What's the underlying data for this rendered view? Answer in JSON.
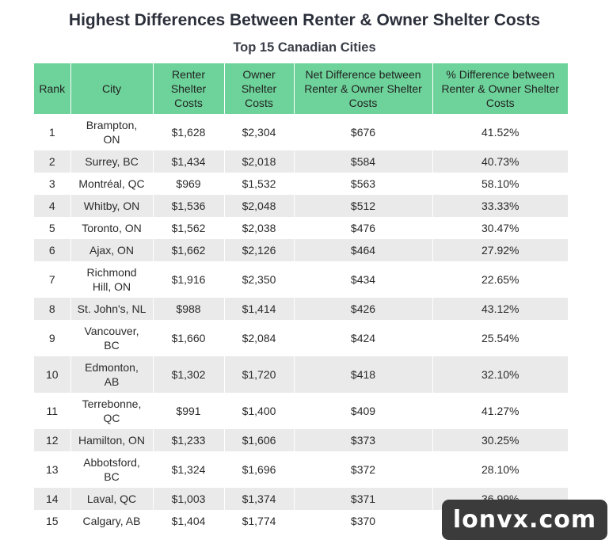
{
  "title": "Highest Differences Between Renter & Owner Shelter Costs",
  "subtitle": "Top 15 Canadian Cities",
  "watermark": "lonvx.com",
  "colors": {
    "header_bg": "#6dd39a",
    "stripe": "#eaeaea",
    "watermark_bg": "#3b3b3b"
  },
  "chart_data": {
    "type": "table",
    "title": "Highest Differences Between Renter & Owner Shelter Costs",
    "subtitle": "Top 15 Canadian Cities",
    "columns": [
      "Rank",
      "City",
      "Renter Shelter Costs",
      "Owner Shelter Costs",
      "Net Difference between Renter & Owner Shelter Costs",
      "% Difference between Renter & Owner Shelter Costs"
    ],
    "rows": [
      [
        "1",
        "Brampton, ON",
        "$1,628",
        "$2,304",
        "$676",
        "41.52%"
      ],
      [
        "2",
        "Surrey, BC",
        "$1,434",
        "$2,018",
        "$584",
        "40.73%"
      ],
      [
        "3",
        "Montréal, QC",
        "$969",
        "$1,532",
        "$563",
        "58.10%"
      ],
      [
        "4",
        "Whitby, ON",
        "$1,536",
        "$2,048",
        "$512",
        "33.33%"
      ],
      [
        "5",
        "Toronto, ON",
        "$1,562",
        "$2,038",
        "$476",
        "30.47%"
      ],
      [
        "6",
        "Ajax, ON",
        "$1,662",
        "$2,126",
        "$464",
        "27.92%"
      ],
      [
        "7",
        "Richmond Hill, ON",
        "$1,916",
        "$2,350",
        "$434",
        "22.65%"
      ],
      [
        "8",
        "St. John's, NL",
        "$988",
        "$1,414",
        "$426",
        "43.12%"
      ],
      [
        "9",
        "Vancouver, BC",
        "$1,660",
        "$2,084",
        "$424",
        "25.54%"
      ],
      [
        "10",
        "Edmonton, AB",
        "$1,302",
        "$1,720",
        "$418",
        "32.10%"
      ],
      [
        "11",
        "Terrebonne, QC",
        "$991",
        "$1,400",
        "$409",
        "41.27%"
      ],
      [
        "12",
        "Hamilton, ON",
        "$1,233",
        "$1,606",
        "$373",
        "30.25%"
      ],
      [
        "13",
        "Abbotsford, BC",
        "$1,324",
        "$1,696",
        "$372",
        "28.10%"
      ],
      [
        "14",
        "Laval, QC",
        "$1,003",
        "$1,374",
        "$371",
        "36.99%"
      ],
      [
        "15",
        "Calgary, AB",
        "$1,404",
        "$1,774",
        "$370",
        ""
      ]
    ]
  }
}
